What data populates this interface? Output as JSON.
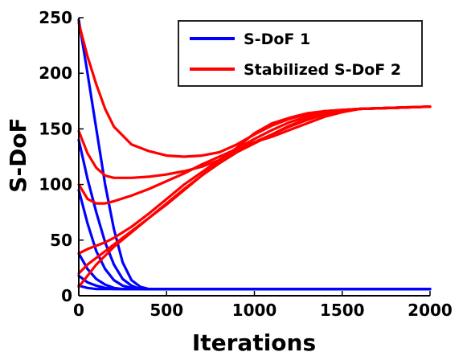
{
  "chart_data": {
    "type": "line",
    "title": "",
    "xlabel": "Iterations",
    "ylabel": "S-DoF",
    "xlim": [
      0,
      2000
    ],
    "ylim": [
      0,
      250
    ],
    "xticks": [
      0,
      500,
      1000,
      1500,
      2000
    ],
    "yticks": [
      0,
      50,
      100,
      150,
      200,
      250
    ],
    "grid": false,
    "legend": {
      "position": "top-right",
      "entries": [
        {
          "label": "S-DoF 1",
          "color": "#0000ff"
        },
        {
          "label": "Stabilized S-DoF 2",
          "color": "#ff0000"
        }
      ]
    },
    "series": [
      {
        "group": "S-DoF 1",
        "color": "#0000ff",
        "x": [
          0,
          50,
          100,
          150,
          200,
          250,
          300,
          350,
          400,
          500,
          1000,
          1500,
          2000
        ],
        "y": [
          248,
          200,
          150,
          100,
          60,
          30,
          14,
          8,
          6,
          6,
          6,
          6,
          6
        ]
      },
      {
        "group": "S-DoF 1",
        "color": "#0000ff",
        "x": [
          0,
          50,
          100,
          150,
          200,
          250,
          300,
          350,
          500,
          1000,
          1500,
          2000
        ],
        "y": [
          140,
          105,
          75,
          48,
          28,
          15,
          9,
          6,
          6,
          6,
          6,
          6
        ]
      },
      {
        "group": "S-DoF 1",
        "color": "#0000ff",
        "x": [
          0,
          50,
          100,
          150,
          200,
          250,
          300,
          400,
          1000,
          1500,
          2000
        ],
        "y": [
          95,
          65,
          40,
          24,
          14,
          9,
          7,
          6,
          6,
          6,
          6
        ]
      },
      {
        "group": "S-DoF 1",
        "color": "#0000ff",
        "x": [
          0,
          50,
          100,
          150,
          200,
          250,
          400,
          1000,
          1500,
          2000
        ],
        "y": [
          38,
          24,
          15,
          10,
          7,
          6,
          6,
          6,
          6,
          6
        ]
      },
      {
        "group": "S-DoF 1",
        "color": "#0000ff",
        "x": [
          0,
          50,
          100,
          150,
          200,
          300,
          1000,
          1500,
          2000
        ],
        "y": [
          18,
          12,
          9,
          7,
          6,
          6,
          6,
          6,
          6
        ]
      },
      {
        "group": "S-DoF 1",
        "color": "#0000ff",
        "x": [
          0,
          50,
          100,
          200,
          1000,
          1500,
          2000
        ],
        "y": [
          9,
          7,
          6,
          6,
          6,
          6,
          6
        ]
      },
      {
        "group": "Stabilized S-DoF 2",
        "color": "#ff0000",
        "x": [
          0,
          50,
          100,
          150,
          200,
          300,
          400,
          500,
          600,
          700,
          800,
          900,
          1000,
          1100,
          1200,
          1300,
          1400,
          1500,
          1600,
          1800,
          2000
        ],
        "y": [
          245,
          215,
          190,
          168,
          152,
          136,
          130,
          126,
          125,
          126,
          129,
          136,
          145,
          153,
          159,
          163,
          166,
          167,
          168,
          169,
          170
        ]
      },
      {
        "group": "Stabilized S-DoF 2",
        "color": "#ff0000",
        "x": [
          0,
          50,
          100,
          150,
          200,
          300,
          400,
          500,
          600,
          700,
          800,
          900,
          1000,
          1100,
          1200,
          1300,
          1400,
          1500,
          1600,
          1800,
          2000
        ],
        "y": [
          148,
          128,
          115,
          108,
          106,
          106,
          107,
          109,
          112,
          116,
          122,
          133,
          146,
          155,
          160,
          164,
          166,
          167,
          168,
          169,
          170
        ]
      },
      {
        "group": "Stabilized S-DoF 2",
        "color": "#ff0000",
        "x": [
          0,
          50,
          100,
          150,
          200,
          300,
          400,
          500,
          600,
          700,
          800,
          900,
          1000,
          1100,
          1200,
          1300,
          1400,
          1500,
          1600,
          1800,
          2000
        ],
        "y": [
          100,
          87,
          83,
          83,
          85,
          90,
          96,
          103,
          110,
          118,
          125,
          132,
          138,
          145,
          153,
          159,
          163,
          166,
          168,
          169,
          170
        ]
      },
      {
        "group": "Stabilized S-DoF 2",
        "color": "#ff0000",
        "x": [
          0,
          50,
          100,
          150,
          200,
          300,
          400,
          500,
          600,
          700,
          800,
          900,
          1000,
          1100,
          1200,
          1300,
          1400,
          1500,
          1600,
          1800,
          2000
        ],
        "y": [
          38,
          42,
          45,
          48,
          52,
          62,
          74,
          87,
          100,
          111,
          122,
          131,
          138,
          143,
          149,
          155,
          161,
          165,
          168,
          169,
          170
        ]
      },
      {
        "group": "Stabilized S-DoF 2",
        "color": "#ff0000",
        "x": [
          0,
          50,
          100,
          150,
          200,
          300,
          400,
          500,
          600,
          700,
          800,
          900,
          1000,
          1100,
          1200,
          1300,
          1400,
          1500,
          1600,
          1800,
          2000
        ],
        "y": [
          20,
          28,
          34,
          40,
          46,
          58,
          70,
          83,
          96,
          108,
          119,
          129,
          137,
          145,
          152,
          158,
          163,
          166,
          168,
          169,
          170
        ]
      },
      {
        "group": "Stabilized S-DoF 2",
        "color": "#ff0000",
        "x": [
          0,
          30,
          60,
          100,
          150,
          200,
          300,
          400,
          500,
          600,
          700,
          800,
          900,
          1000,
          1100,
          1200,
          1300,
          1400,
          1500,
          1600,
          1800,
          2000
        ],
        "y": [
          8,
          14,
          20,
          28,
          36,
          44,
          57,
          70,
          82,
          95,
          108,
          120,
          132,
          141,
          149,
          156,
          161,
          165,
          167,
          168,
          169,
          170
        ]
      }
    ]
  }
}
